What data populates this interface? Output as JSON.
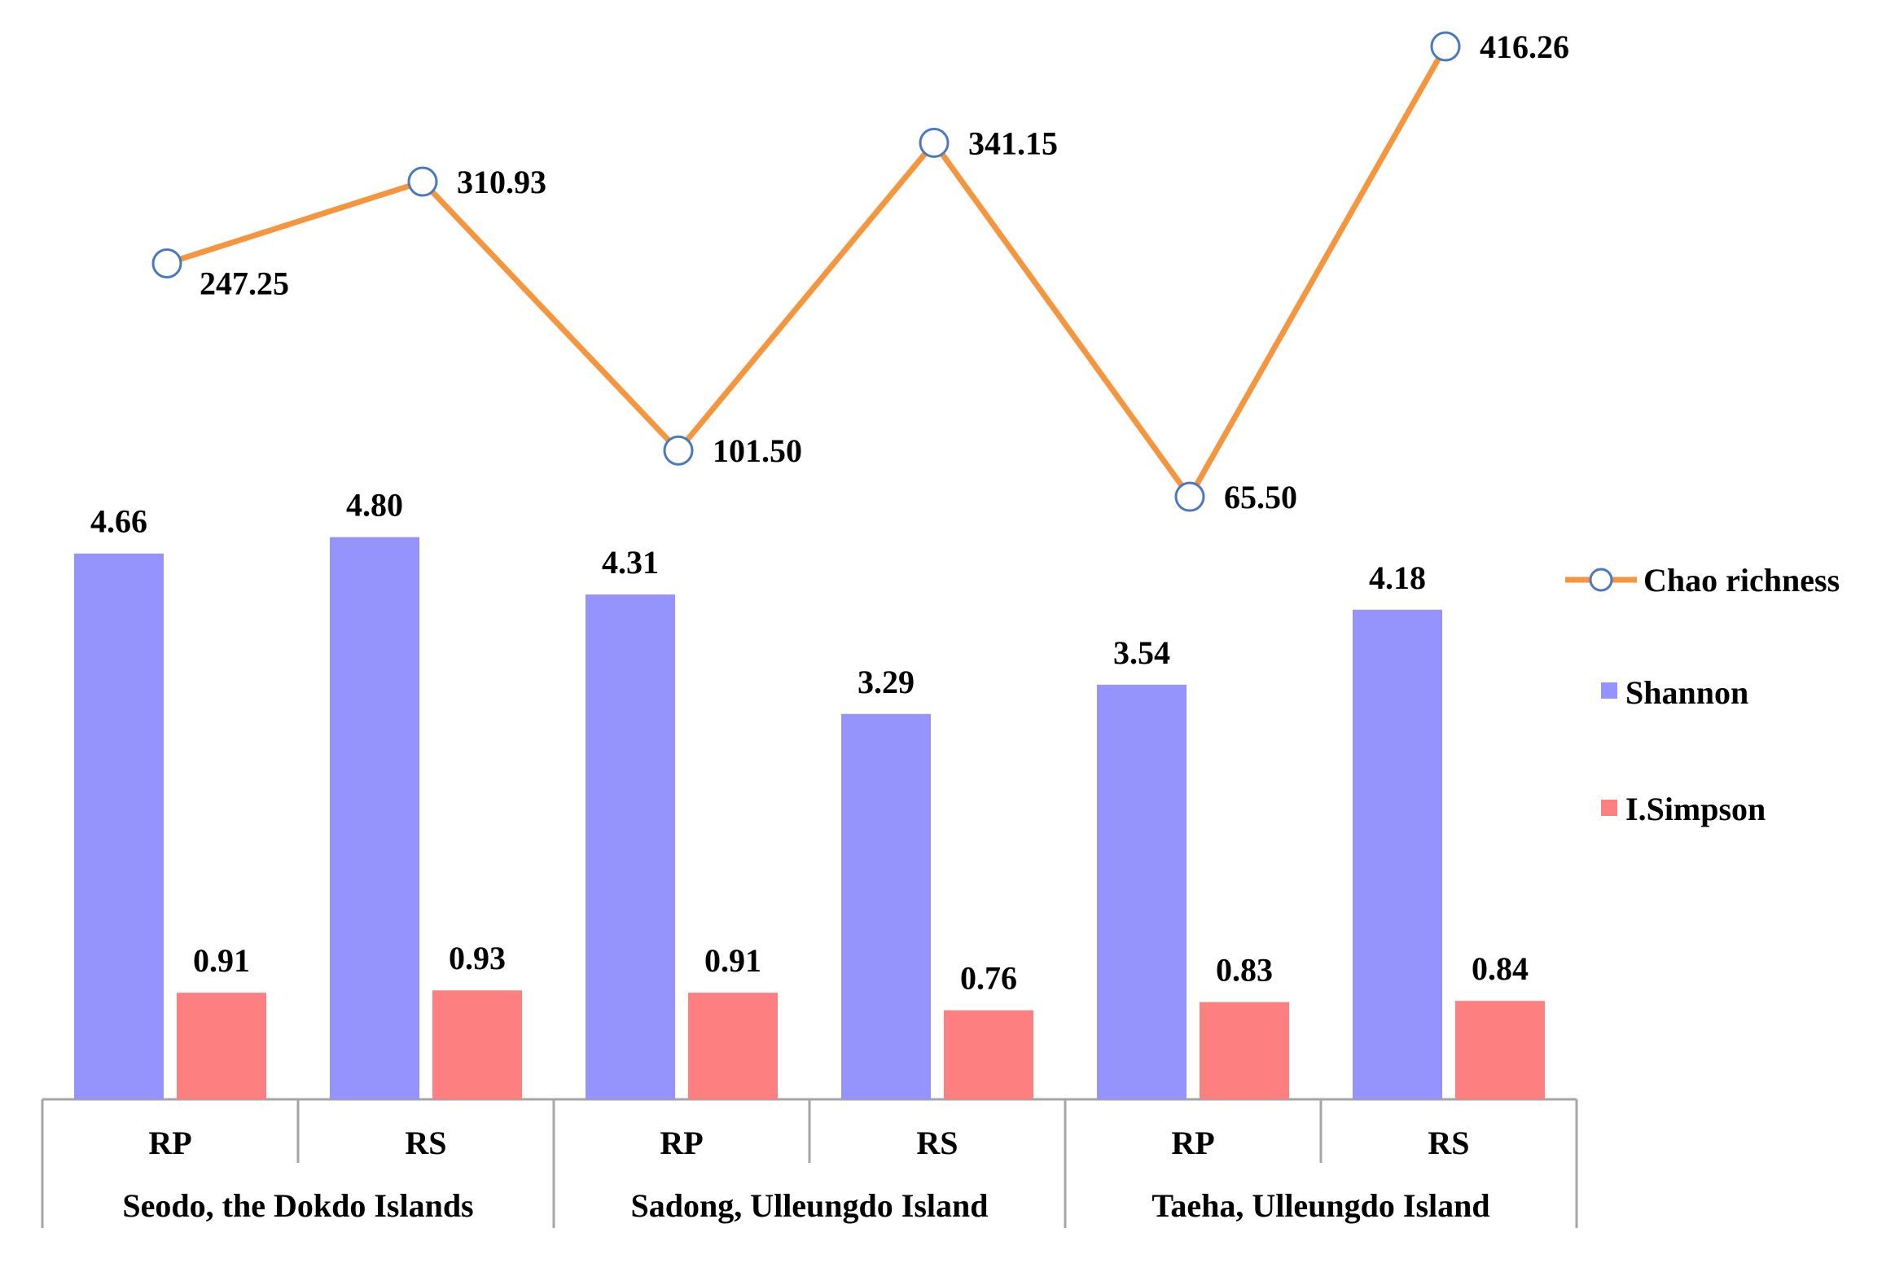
{
  "chart_data": {
    "type": "bar",
    "groups": [
      "Seodo, the Dokdo Islands",
      "Sadong, Ulleungdo Island",
      "Taeha, Ulleungdo Island"
    ],
    "categories": [
      "RP",
      "RS",
      "RP",
      "RS",
      "RP",
      "RS"
    ],
    "series": [
      {
        "name": "Shannon",
        "kind": "bar",
        "color": "#9494fc",
        "values": [
          4.66,
          4.8,
          4.31,
          3.29,
          3.54,
          4.18
        ],
        "labels": [
          "4.66",
          "4.80",
          "4.31",
          "3.29",
          "3.54",
          "4.18"
        ]
      },
      {
        "name": "I.Simpson",
        "kind": "bar",
        "color": "#fd7f7f",
        "values": [
          0.91,
          0.93,
          0.91,
          0.76,
          0.83,
          0.84
        ],
        "labels": [
          "0.91",
          "0.93",
          "0.91",
          "0.76",
          "0.83",
          "0.84"
        ]
      },
      {
        "name": "Chao richness",
        "kind": "line",
        "color": "#f5963f",
        "marker_color": "#4a79bd",
        "values": [
          247.25,
          310.93,
          101.5,
          341.15,
          65.5,
          416.26
        ],
        "labels": [
          "247.25",
          "310.93",
          "101.50",
          "341.15",
          "65.50",
          "416.26"
        ]
      }
    ],
    "legend": [
      "Chao richness",
      "Shannon",
      "I.Simpson"
    ],
    "legend_position": "right",
    "bar_axis_range": [
      0,
      7.3
    ],
    "line_axis_range": [
      -80,
      485
    ],
    "title": "",
    "xlabel": "",
    "ylabel": "",
    "grid": false
  }
}
